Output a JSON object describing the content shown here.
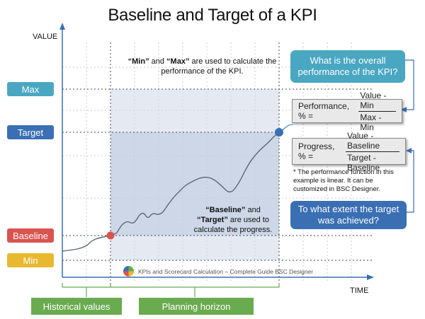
{
  "title": "Baseline and Target of a KPI",
  "axes": {
    "y_label": "VALUE",
    "x_label": "TIME"
  },
  "levels": {
    "max": {
      "label": "Max",
      "color": "#4aa7c2"
    },
    "target": {
      "label": "Target",
      "color": "#3a6fb3"
    },
    "baseline": {
      "label": "Baseline",
      "color": "#d9534f"
    },
    "min": {
      "label": "Min",
      "color": "#e8b830"
    }
  },
  "notes": {
    "minmax": {
      "b1": "“Min”",
      "t1": " and ",
      "b2": "“Max”",
      "t2": " are used to calculate the",
      "line2": "performance of the KPI."
    },
    "baseline_target": {
      "b1": "“Baseline”",
      "t1": " and",
      "b2": "“Target”",
      "t2": " are used to",
      "line3": "calculate the progress."
    }
  },
  "callouts": {
    "question_performance": "What is the overall performance of the KPI?",
    "question_target": "To what extent the target was achieved?"
  },
  "formulas": {
    "performance": {
      "label": "Performance, % =",
      "numerator": "Value - Min",
      "denominator": "Max - Min"
    },
    "progress": {
      "label": "Progress, % =",
      "numerator": "Value - Baseline",
      "denominator": "Target - Baseline"
    }
  },
  "footnote": "* The performance function in this example is linear.  It can be customized in BSC Designer.",
  "periods": {
    "historical": "Historical values",
    "planning": "Planning horizon"
  },
  "credit": "KPIs and Scorecard Calculation – Complete Guide  BSC Designer",
  "curve_points": [
    [
      0,
      0
    ],
    [
      0.02,
      0.015
    ],
    [
      0.035,
      0.02
    ],
    [
      0.05,
      0.06
    ],
    [
      0.07,
      0.11
    ],
    [
      0.1,
      0.14
    ],
    [
      0.13,
      0.115
    ],
    [
      0.15,
      0.14
    ],
    [
      0.175,
      0.21
    ],
    [
      0.2,
      0.22
    ],
    [
      0.22,
      0.16
    ],
    [
      0.25,
      0.22
    ],
    [
      0.28,
      0.2
    ],
    [
      0.31,
      0.22
    ],
    [
      0.34,
      0.3
    ],
    [
      0.38,
      0.38
    ],
    [
      0.41,
      0.43
    ],
    [
      0.44,
      0.48
    ],
    [
      0.47,
      0.51
    ],
    [
      0.51,
      0.545
    ],
    [
      0.56,
      0.57
    ],
    [
      0.61,
      0.55
    ],
    [
      0.66,
      0.48
    ],
    [
      0.71,
      0.4
    ],
    [
      0.76,
      0.5
    ],
    [
      0.82,
      0.7
    ],
    [
      0.88,
      0.82
    ],
    [
      0.93,
      0.89
    ],
    [
      0.97,
      0.96
    ],
    [
      1,
      1
    ]
  ]
}
